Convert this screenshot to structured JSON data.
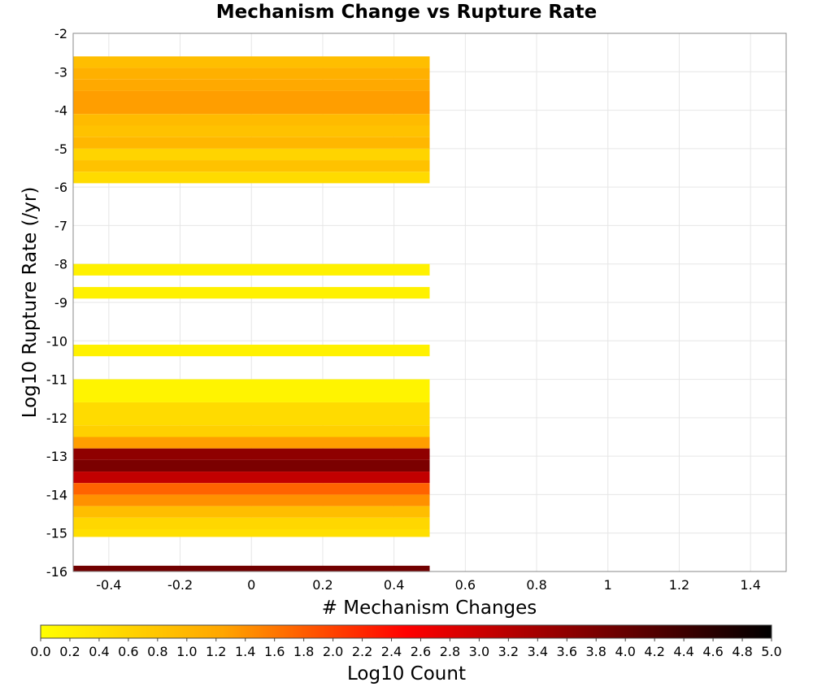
{
  "chart_data": {
    "type": "heatmap",
    "title": "Mechanism Change vs Rupture Rate",
    "xlabel": "# Mechanism Changes",
    "ylabel": "Log10 Rupture Rate (/yr)",
    "xlim": [
      -0.5,
      1.5
    ],
    "ylim": [
      -16,
      -2
    ],
    "x_ticks": [
      "-0.4",
      "-0.2",
      "0",
      "0.2",
      "0.4",
      "0.6",
      "0.8",
      "1",
      "1.2",
      "1.4"
    ],
    "x_tick_values": [
      -0.4,
      -0.2,
      0,
      0.2,
      0.4,
      0.6,
      0.8,
      1,
      1.2,
      1.4
    ],
    "y_ticks": [
      "-2",
      "-3",
      "-4",
      "-5",
      "-6",
      "-7",
      "-8",
      "-9",
      "-10",
      "-11",
      "-12",
      "-13",
      "-14",
      "-15",
      "-16"
    ],
    "y_tick_values": [
      -2,
      -3,
      -4,
      -5,
      -6,
      -7,
      -8,
      -9,
      -10,
      -11,
      -12,
      -13,
      -14,
      -15,
      -16
    ],
    "grid": true,
    "colorscale": {
      "label": "Log10 Count",
      "min": 0.0,
      "max": 5.0,
      "ticks": [
        "0.0",
        "0.2",
        "0.4",
        "0.6",
        "0.8",
        "1.0",
        "1.2",
        "1.4",
        "1.6",
        "1.8",
        "2.0",
        "2.2",
        "2.4",
        "2.6",
        "2.8",
        "3.0",
        "3.2",
        "3.4",
        "3.6",
        "3.8",
        "4.0",
        "4.2",
        "4.4",
        "4.6",
        "4.8",
        "5.0"
      ],
      "stops": [
        "#ffff00",
        "#ffa500",
        "#ff0000",
        "#800000",
        "#000000"
      ]
    },
    "x_bin": [
      -0.5,
      0.5
    ],
    "cells": [
      {
        "x": 0,
        "y0": -2.6,
        "y1": -2.9,
        "value": 0.9
      },
      {
        "x": 0,
        "y0": -2.9,
        "y1": -3.2,
        "value": 1.1
      },
      {
        "x": 0,
        "y0": -3.2,
        "y1": -3.5,
        "value": 1.2
      },
      {
        "x": 0,
        "y0": -3.5,
        "y1": -4.1,
        "value": 1.3
      },
      {
        "x": 0,
        "y0": -4.1,
        "y1": -4.4,
        "value": 0.95
      },
      {
        "x": 0,
        "y0": -4.4,
        "y1": -4.7,
        "value": 0.85
      },
      {
        "x": 0,
        "y0": -4.7,
        "y1": -5.0,
        "value": 1.0
      },
      {
        "x": 0,
        "y0": -5.0,
        "y1": -5.3,
        "value": 0.6
      },
      {
        "x": 0,
        "y0": -5.3,
        "y1": -5.6,
        "value": 0.85
      },
      {
        "x": 0,
        "y0": -5.6,
        "y1": -5.9,
        "value": 0.5
      },
      {
        "x": 0,
        "y0": -8.0,
        "y1": -8.3,
        "value": 0.2
      },
      {
        "x": 0,
        "y0": -8.6,
        "y1": -8.9,
        "value": 0.2
      },
      {
        "x": 0,
        "y0": -10.1,
        "y1": -10.4,
        "value": 0.2
      },
      {
        "x": 0,
        "y0": -11.0,
        "y1": -11.6,
        "value": 0.15
      },
      {
        "x": 0,
        "y0": -11.6,
        "y1": -12.2,
        "value": 0.5
      },
      {
        "x": 0,
        "y0": -12.2,
        "y1": -12.5,
        "value": 0.65
      },
      {
        "x": 0,
        "y0": -12.5,
        "y1": -12.8,
        "value": 1.3
      },
      {
        "x": 0,
        "y0": -12.8,
        "y1": -13.1,
        "value": 3.6
      },
      {
        "x": 0,
        "y0": -13.1,
        "y1": -13.4,
        "value": 3.8
      },
      {
        "x": 0,
        "y0": -13.4,
        "y1": -13.7,
        "value": 3.1
      },
      {
        "x": 0,
        "y0": -13.7,
        "y1": -14.0,
        "value": 1.75
      },
      {
        "x": 0,
        "y0": -14.0,
        "y1": -14.3,
        "value": 1.4
      },
      {
        "x": 0,
        "y0": -14.3,
        "y1": -14.6,
        "value": 0.9
      },
      {
        "x": 0,
        "y0": -14.6,
        "y1": -14.9,
        "value": 0.55
      },
      {
        "x": 0,
        "y0": -14.9,
        "y1": -15.1,
        "value": 0.45
      },
      {
        "x": 0,
        "y0": -15.85,
        "y1": -16.0,
        "value": 3.9
      }
    ]
  }
}
